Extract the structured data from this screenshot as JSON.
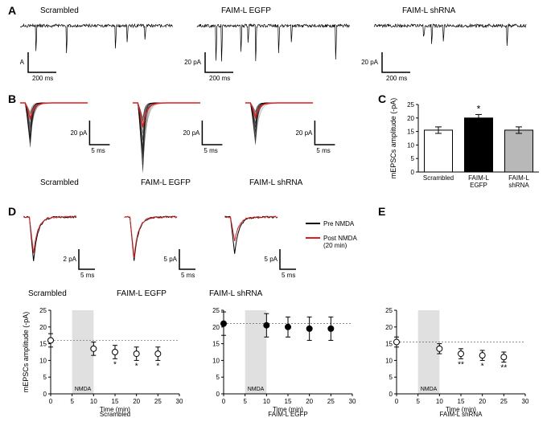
{
  "panelA": {
    "label": "A",
    "conditions": [
      "Scrambled",
      "FAIM-L EGFP",
      "FAIM-L shRNA"
    ],
    "scale": {
      "y_label": "20 pA",
      "x_label": "200 ms"
    }
  },
  "panelB": {
    "label": "B",
    "conditions": [
      "Scrambled",
      "FAIM-L EGFP",
      "FAIM-L shRNA"
    ],
    "scale": {
      "y_label": "20 pA",
      "x_label": "5 ms"
    }
  },
  "panelC": {
    "label": "C",
    "ylabel": "mEPSCs amplitude (-pA)",
    "categories": [
      "Scrambled",
      "FAIM-L\nEGFP",
      "FAIM-L\nshRNA"
    ],
    "values": [
      15.5,
      20,
      15.5
    ],
    "errors": [
      1.2,
      1.3,
      1.2
    ],
    "bar_colors": [
      "#ffffff",
      "#000000",
      "#b8b8b8"
    ],
    "ylim": [
      0,
      25
    ],
    "ytick_step": 5,
    "sig": [
      "",
      "*",
      ""
    ]
  },
  "panelD": {
    "label": "D",
    "conditions": [
      "Scrambled",
      "FAIM-L EGFP",
      "FAIM-L shRNA"
    ],
    "legend": [
      "Pre NMDA",
      "Post NMDA\n(20 min)"
    ],
    "legend_colors": [
      "#000000",
      "#e31a1c"
    ],
    "scales": [
      {
        "y_label": "2 pA",
        "x_label": "5 ms"
      },
      {
        "y_label": "5 pA",
        "x_label": "5 ms"
      },
      {
        "y_label": "5 pA",
        "x_label": "5 ms"
      }
    ]
  },
  "panelE": {
    "label": "E",
    "ylabel": "mEPSCs amplitude (-pA)",
    "xlabel": "Time (min)",
    "xticks": [
      0,
      5,
      10,
      15,
      20,
      25,
      30
    ],
    "ylim": [
      0,
      25
    ],
    "ytick_step": 5,
    "nmda_label": "NMDA",
    "subplots": [
      {
        "title": "Scrambled",
        "marker_fill": "#ffffff",
        "x": [
          0,
          10,
          15,
          20,
          25
        ],
        "y": [
          16,
          13.5,
          12.5,
          12,
          12
        ],
        "err": [
          2,
          2,
          2,
          2,
          2
        ],
        "sig": [
          "",
          "",
          "*",
          "*",
          "*"
        ]
      },
      {
        "title": "FAIM-L EGFP",
        "marker_fill": "#000000",
        "x": [
          0,
          10,
          15,
          20,
          25
        ],
        "y": [
          21,
          20.5,
          20,
          19.5,
          19.5
        ],
        "err": [
          3.5,
          3.5,
          3,
          3.5,
          3.5
        ],
        "sig": [
          "",
          "",
          "",
          "",
          ""
        ]
      },
      {
        "title": "FAIM-L shRNA",
        "marker_fill": "#ffffff",
        "x": [
          0,
          10,
          15,
          20,
          25
        ],
        "y": [
          15.5,
          13.5,
          12,
          11.5,
          11
        ],
        "err": [
          1.5,
          1.5,
          1.5,
          1.5,
          1.5
        ],
        "sig": [
          "",
          "",
          "**",
          "*",
          "**"
        ]
      }
    ]
  },
  "colors": {
    "trace": "#000000",
    "avg_trace": "#e31a1c",
    "axis": "#000000",
    "grid": "#808080"
  }
}
